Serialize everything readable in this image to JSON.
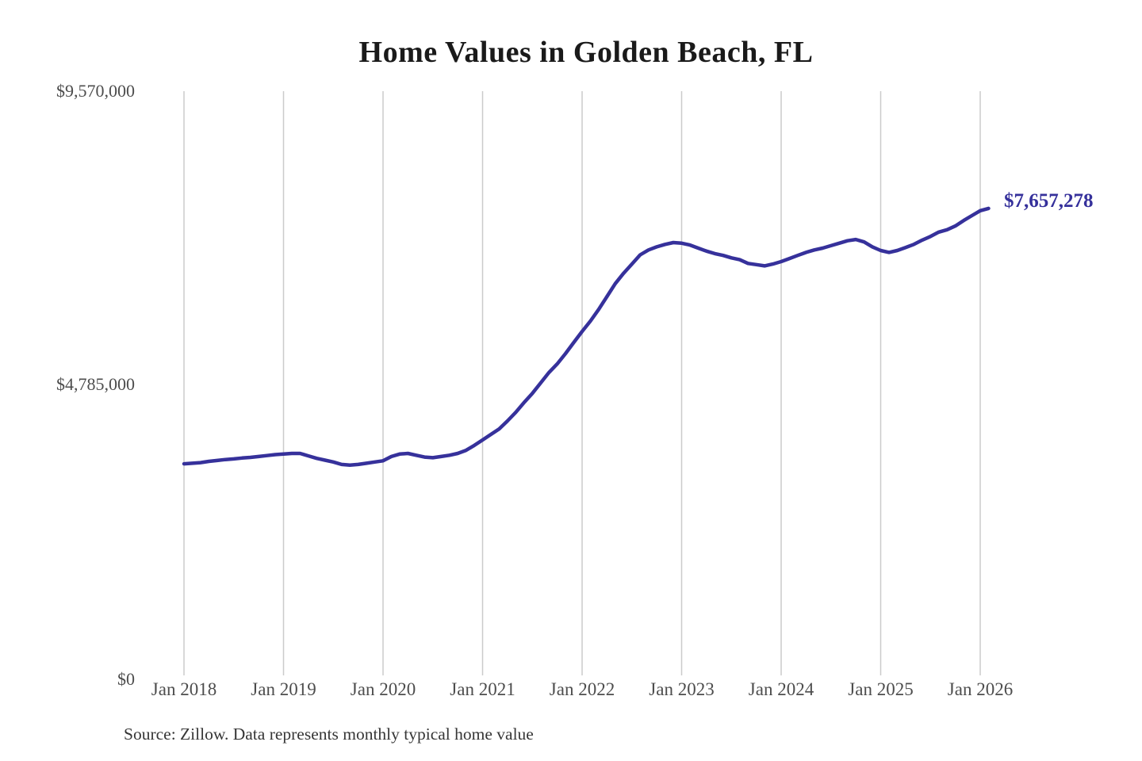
{
  "chart_data": {
    "type": "line",
    "title": "Home Values in Golden Beach, FL",
    "series_name": "Monthly typical home value",
    "source_note": "Source: Zillow. Data represents monthly typical home value",
    "end_label": "$7,657,278",
    "end_value": 7657278,
    "line_color": "#36319b",
    "grid_color": "#cbcbcb",
    "grid": "vertical-only",
    "legend": "none",
    "ylim": [
      0,
      9570000
    ],
    "y_ticks": [
      0,
      4785000,
      9570000
    ],
    "y_tick_labels": [
      "$0",
      "$4,785,000",
      "$9,570,000"
    ],
    "x_tick_labels": [
      "Jan 2018",
      "Jan 2019",
      "Jan 2020",
      "Jan 2021",
      "Jan 2022",
      "Jan 2023",
      "Jan 2024",
      "Jan 2025",
      "Jan 2026"
    ],
    "x": [
      "2018-01",
      "2018-02",
      "2018-03",
      "2018-04",
      "2018-05",
      "2018-06",
      "2018-07",
      "2018-08",
      "2018-09",
      "2018-10",
      "2018-11",
      "2018-12",
      "2019-01",
      "2019-02",
      "2019-03",
      "2019-04",
      "2019-05",
      "2019-06",
      "2019-07",
      "2019-08",
      "2019-09",
      "2019-10",
      "2019-11",
      "2019-12",
      "2020-01",
      "2020-02",
      "2020-03",
      "2020-04",
      "2020-05",
      "2020-06",
      "2020-07",
      "2020-08",
      "2020-09",
      "2020-10",
      "2020-11",
      "2020-12",
      "2021-01",
      "2021-02",
      "2021-03",
      "2021-04",
      "2021-05",
      "2021-06",
      "2021-07",
      "2021-08",
      "2021-09",
      "2021-10",
      "2021-11",
      "2021-12",
      "2022-01",
      "2022-02",
      "2022-03",
      "2022-04",
      "2022-05",
      "2022-06",
      "2022-07",
      "2022-08",
      "2022-09",
      "2022-10",
      "2022-11",
      "2022-12",
      "2023-01",
      "2023-02",
      "2023-03",
      "2023-04",
      "2023-05",
      "2023-06",
      "2023-07",
      "2023-08",
      "2023-09",
      "2023-10",
      "2023-11",
      "2023-12",
      "2024-01",
      "2024-02",
      "2024-03",
      "2024-04",
      "2024-05",
      "2024-06",
      "2024-07",
      "2024-08",
      "2024-09",
      "2024-10",
      "2024-11",
      "2024-12",
      "2025-01",
      "2025-02",
      "2025-03",
      "2025-04",
      "2025-05",
      "2025-06",
      "2025-07",
      "2025-08",
      "2025-09",
      "2025-10",
      "2025-11",
      "2025-12",
      "2026-01",
      "2026-02"
    ],
    "values": [
      3490000,
      3500000,
      3510000,
      3530000,
      3545000,
      3560000,
      3570000,
      3585000,
      3595000,
      3610000,
      3625000,
      3640000,
      3650000,
      3660000,
      3660000,
      3620000,
      3580000,
      3550000,
      3520000,
      3480000,
      3470000,
      3480000,
      3500000,
      3520000,
      3540000,
      3610000,
      3650000,
      3660000,
      3630000,
      3600000,
      3590000,
      3610000,
      3630000,
      3660000,
      3710000,
      3790000,
      3880000,
      3970000,
      4060000,
      4190000,
      4330000,
      4490000,
      4640000,
      4810000,
      4980000,
      5120000,
      5290000,
      5470000,
      5650000,
      5820000,
      6010000,
      6220000,
      6430000,
      6600000,
      6750000,
      6900000,
      6980000,
      7030000,
      7070000,
      7100000,
      7090000,
      7060000,
      7010000,
      6960000,
      6920000,
      6890000,
      6850000,
      6820000,
      6760000,
      6740000,
      6720000,
      6750000,
      6790000,
      6840000,
      6890000,
      6940000,
      6980000,
      7010000,
      7050000,
      7090000,
      7130000,
      7150000,
      7110000,
      7030000,
      6970000,
      6940000,
      6970000,
      7020000,
      7070000,
      7140000,
      7200000,
      7270000,
      7310000,
      7370000,
      7460000,
      7540000,
      7620000,
      7657278
    ]
  }
}
